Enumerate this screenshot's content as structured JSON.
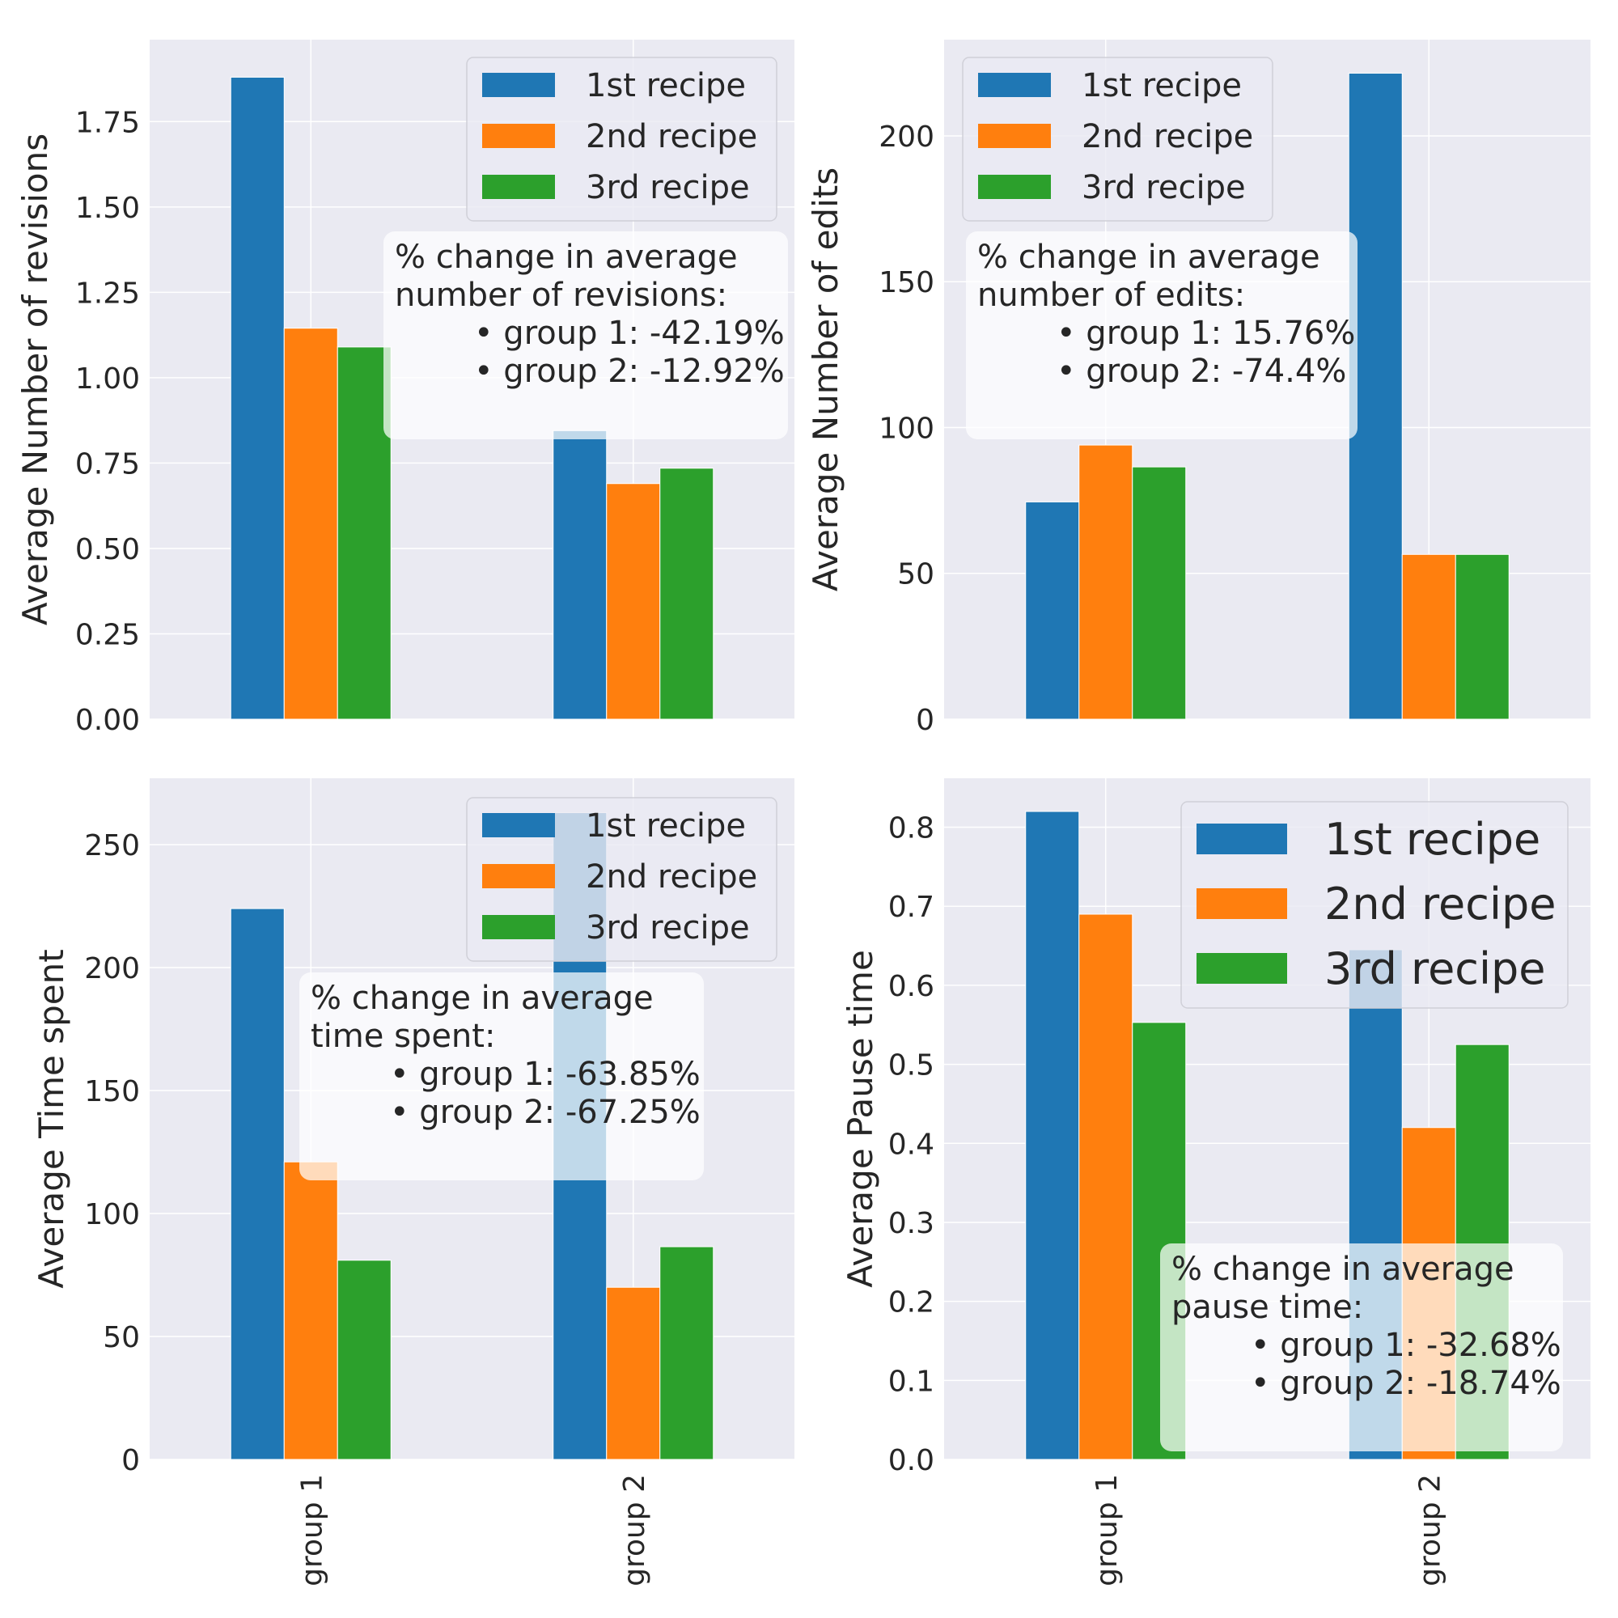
{
  "series_names": [
    "1st recipe",
    "2nd recipe",
    "3rd recipe"
  ],
  "colors": {
    "series": [
      "#1f77b4",
      "#ff7f0e",
      "#2ca02c"
    ],
    "panel_bg": "#eaeaf2",
    "grid": "#ffffff",
    "text": "#262626"
  },
  "chart_data": [
    {
      "type": "bar",
      "id": "revisions",
      "categories": [
        "group 1",
        "group 2"
      ],
      "series": [
        {
          "name": "1st recipe",
          "values": [
            1.88,
            0.845
          ]
        },
        {
          "name": "2nd recipe",
          "values": [
            1.145,
            0.69
          ]
        },
        {
          "name": "3rd recipe",
          "values": [
            1.09,
            0.735
          ]
        }
      ],
      "ylabel": "Average Number of revisions",
      "ylim": [
        0,
        1.99
      ],
      "yticks": [
        0.0,
        0.25,
        0.5,
        0.75,
        1.0,
        1.25,
        1.5,
        1.75
      ],
      "ytick_labels": [
        "0.00",
        "0.25",
        "0.50",
        "0.75",
        "1.00",
        "1.25",
        "1.50",
        "1.75"
      ],
      "show_xticklabels": false,
      "legend": "upper right",
      "annotation": {
        "title": "% change in average",
        "subtitle": "number of revisions:",
        "items": [
          "• group 1: -42.19%",
          "• group 2: -12.92%"
        ]
      }
    },
    {
      "type": "bar",
      "id": "edits",
      "categories": [
        "group 1",
        "group 2"
      ],
      "series": [
        {
          "name": "1st recipe",
          "values": [
            74.5,
            221.5
          ]
        },
        {
          "name": "2nd recipe",
          "values": [
            94,
            56.5
          ]
        },
        {
          "name": "3rd recipe",
          "values": [
            86.5,
            56.5
          ]
        }
      ],
      "ylabel": "Average Number of edits",
      "ylim": [
        0,
        233
      ],
      "yticks": [
        0,
        50,
        100,
        150,
        200
      ],
      "ytick_labels": [
        "0",
        "50",
        "100",
        "150",
        "200"
      ],
      "show_xticklabels": false,
      "legend": "upper left",
      "annotation": {
        "title": "% change in average",
        "subtitle": "number of edits:",
        "items": [
          "• group 1: 15.76%",
          "• group 2: -74.4%"
        ]
      }
    },
    {
      "type": "bar",
      "id": "time",
      "categories": [
        "group 1",
        "group 2"
      ],
      "series": [
        {
          "name": "1st recipe",
          "values": [
            224,
            263
          ]
        },
        {
          "name": "2nd recipe",
          "values": [
            121,
            70
          ]
        },
        {
          "name": "3rd recipe",
          "values": [
            81,
            86.5
          ]
        }
      ],
      "ylabel": "Average Time spent",
      "ylim": [
        0,
        277
      ],
      "yticks": [
        0,
        50,
        100,
        150,
        200,
        250
      ],
      "ytick_labels": [
        "0",
        "50",
        "100",
        "150",
        "200",
        "250"
      ],
      "show_xticklabels": true,
      "legend": "upper right",
      "annotation": {
        "title": "% change in average",
        "subtitle": "time spent:",
        "items": [
          "• group 1: -63.85%",
          "• group 2: -67.25%"
        ]
      }
    },
    {
      "type": "bar",
      "id": "pause",
      "categories": [
        "group 1",
        "group 2"
      ],
      "series": [
        {
          "name": "1st recipe",
          "values": [
            0.82,
            0.645
          ]
        },
        {
          "name": "2nd recipe",
          "values": [
            0.69,
            0.42
          ]
        },
        {
          "name": "3rd recipe",
          "values": [
            0.553,
            0.525
          ]
        }
      ],
      "ylabel": "Average Pause time",
      "ylim": [
        0,
        0.862
      ],
      "yticks": [
        0.0,
        0.1,
        0.2,
        0.3,
        0.4,
        0.5,
        0.6,
        0.7,
        0.8
      ],
      "ytick_labels": [
        "0.0",
        "0.1",
        "0.2",
        "0.3",
        "0.4",
        "0.5",
        "0.6",
        "0.7",
        "0.8"
      ],
      "show_xticklabels": true,
      "legend": "upper right",
      "annotation": {
        "title": "% change in average",
        "subtitle": "pause time:",
        "items": [
          "• group 1: -32.68%",
          "• group 2: -18.74%"
        ]
      }
    }
  ]
}
